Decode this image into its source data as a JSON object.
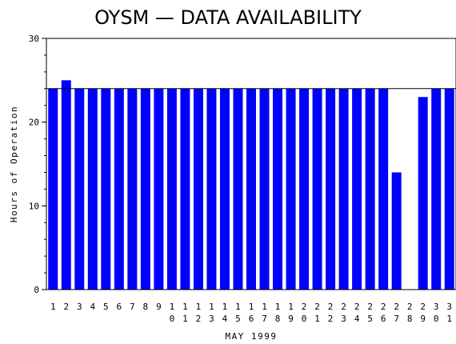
{
  "chart_data": {
    "type": "bar",
    "title": "OYSM — DATA AVAILABILITY",
    "xlabel": "MAY 1999",
    "ylabel": "Hours of Operation",
    "ylim": [
      0,
      30
    ],
    "yticks": [
      0,
      10,
      20,
      30
    ],
    "categories": [
      "1",
      "2",
      "3",
      "4",
      "5",
      "6",
      "7",
      "8",
      "9",
      "10",
      "11",
      "12",
      "13",
      "14",
      "15",
      "16",
      "17",
      "18",
      "19",
      "20",
      "21",
      "22",
      "23",
      "24",
      "25",
      "26",
      "27",
      "28",
      "29",
      "30",
      "31"
    ],
    "values": [
      24,
      25,
      24,
      24,
      24,
      24,
      24,
      24,
      24,
      24,
      24,
      24,
      24,
      24,
      24,
      24,
      24,
      24,
      24,
      24,
      24,
      24,
      24,
      24,
      24,
      24,
      14,
      0,
      23,
      24,
      24
    ],
    "reference_line": 24,
    "bar_color": "#0000ff"
  }
}
